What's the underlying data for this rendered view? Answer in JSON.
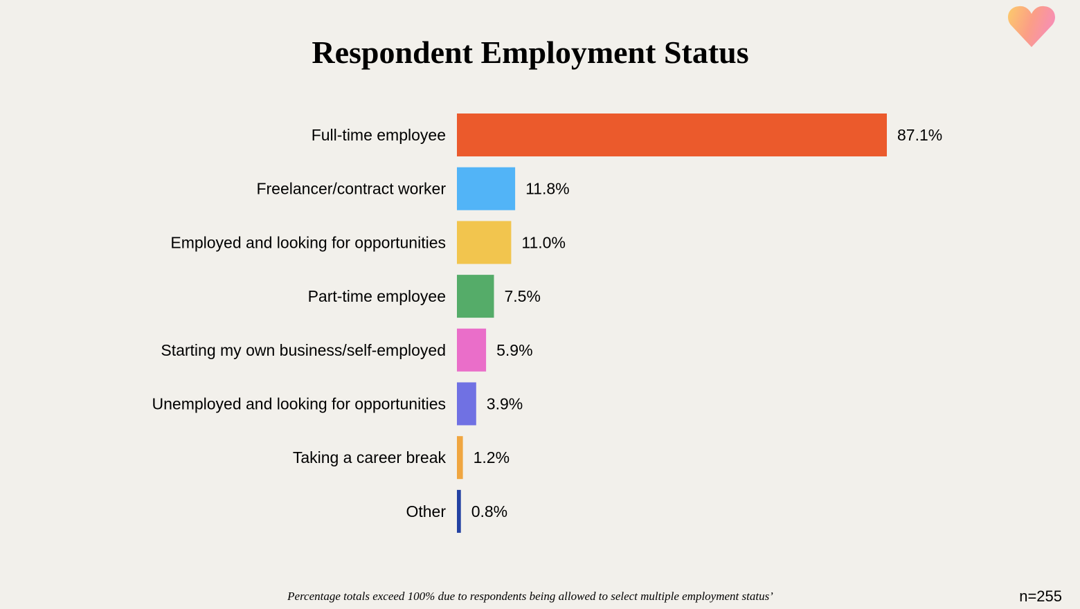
{
  "chart_data": {
    "type": "bar",
    "orientation": "horizontal",
    "title": "Respondent Employment Status",
    "categories": [
      "Full-time employee",
      "Freelancer/contract worker",
      "Employed and looking for opportunities",
      "Part-time employee",
      "Starting my own business/self-employed",
      "Unemployed and looking for opportunities",
      "Taking a career break",
      "Other"
    ],
    "values": [
      87.1,
      11.8,
      11.0,
      7.5,
      5.9,
      3.9,
      1.2,
      0.8
    ],
    "value_labels": [
      "87.1%",
      "11.8%",
      "11.0%",
      "7.5%",
      "5.9%",
      "3.9%",
      "1.2%",
      "0.8%"
    ],
    "colors": [
      "#eb5a2c",
      "#52b4f7",
      "#f2c54e",
      "#55ac69",
      "#ea6ec9",
      "#7071e3",
      "#f0a640",
      "#2341a2"
    ],
    "xlim": [
      0,
      87.1
    ],
    "grid": false,
    "legend": "none",
    "footnote": "Percentage totals exceed 100% due to respondents being allowed to select multiple employment status’",
    "sample_size": "n=255"
  }
}
